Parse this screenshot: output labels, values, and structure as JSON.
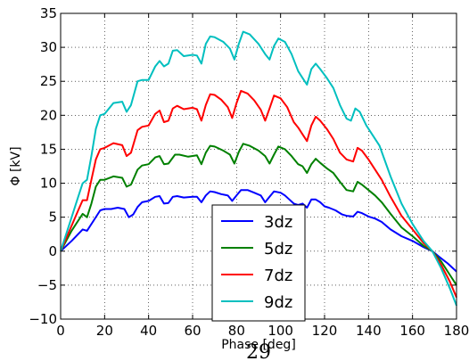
{
  "chart_data": {
    "type": "line",
    "xlabel": "Phase [deg]",
    "ylabel": "Φ [kV]",
    "xlim": [
      0,
      180
    ],
    "ylim": [
      -10,
      35
    ],
    "xticks": [
      0,
      20,
      40,
      60,
      80,
      100,
      120,
      140,
      160,
      180
    ],
    "yticks": [
      -10,
      -5,
      0,
      5,
      10,
      15,
      20,
      25,
      30,
      35
    ],
    "grid": true,
    "legend_position": "lower-center",
    "page_number": "29",
    "series": [
      {
        "name": "3dz",
        "color": "#0000ff",
        "points": [
          [
            0,
            0
          ],
          [
            5,
            1.5
          ],
          [
            10,
            3.2
          ],
          [
            12,
            3.0
          ],
          [
            15,
            4.5
          ],
          [
            18,
            6.0
          ],
          [
            20,
            6.2
          ],
          [
            23,
            6.2
          ],
          [
            26,
            6.4
          ],
          [
            29,
            6.2
          ],
          [
            31,
            5.0
          ],
          [
            33,
            5.4
          ],
          [
            35,
            6.5
          ],
          [
            37,
            7.2
          ],
          [
            40,
            7.4
          ],
          [
            43,
            8.0
          ],
          [
            45,
            8.1
          ],
          [
            47,
            7.0
          ],
          [
            49,
            7.1
          ],
          [
            51,
            8.0
          ],
          [
            53,
            8.1
          ],
          [
            56,
            7.9
          ],
          [
            60,
            8.0
          ],
          [
            62,
            8.0
          ],
          [
            64,
            7.2
          ],
          [
            66,
            8.2
          ],
          [
            68,
            8.8
          ],
          [
            70,
            8.7
          ],
          [
            73,
            8.4
          ],
          [
            76,
            8.2
          ],
          [
            78,
            7.4
          ],
          [
            80,
            8.2
          ],
          [
            82,
            9.0
          ],
          [
            85,
            9.0
          ],
          [
            88,
            8.6
          ],
          [
            91,
            8.2
          ],
          [
            93,
            7.2
          ],
          [
            95,
            8.0
          ],
          [
            97,
            8.8
          ],
          [
            100,
            8.6
          ],
          [
            102,
            8.2
          ],
          [
            104,
            7.6
          ],
          [
            106,
            7.0
          ],
          [
            108,
            6.8
          ],
          [
            110,
            7.0
          ],
          [
            112,
            6.4
          ],
          [
            114,
            7.6
          ],
          [
            116,
            7.6
          ],
          [
            118,
            7.2
          ],
          [
            120,
            6.6
          ],
          [
            122,
            6.4
          ],
          [
            125,
            6.0
          ],
          [
            128,
            5.4
          ],
          [
            130,
            5.2
          ],
          [
            133,
            5.1
          ],
          [
            135,
            5.8
          ],
          [
            137,
            5.6
          ],
          [
            140,
            5.1
          ],
          [
            143,
            4.8
          ],
          [
            146,
            4.3
          ],
          [
            150,
            3.2
          ],
          [
            155,
            2.2
          ],
          [
            160,
            1.5
          ],
          [
            165,
            0.6
          ],
          [
            169,
            0
          ],
          [
            172,
            -0.8
          ],
          [
            176,
            -1.8
          ],
          [
            180,
            -3.0
          ]
        ]
      },
      {
        "name": "5dz",
        "color": "#008000",
        "points": [
          [
            0,
            0
          ],
          [
            5,
            3.0
          ],
          [
            10,
            5.5
          ],
          [
            12,
            5.0
          ],
          [
            14,
            7.0
          ],
          [
            16,
            9.5
          ],
          [
            18,
            10.5
          ],
          [
            20,
            10.5
          ],
          [
            24,
            11.0
          ],
          [
            28,
            10.8
          ],
          [
            30,
            9.5
          ],
          [
            32,
            9.8
          ],
          [
            35,
            12.0
          ],
          [
            37,
            12.6
          ],
          [
            40,
            12.8
          ],
          [
            43,
            13.8
          ],
          [
            45,
            14.0
          ],
          [
            47,
            12.8
          ],
          [
            49,
            12.9
          ],
          [
            52,
            14.2
          ],
          [
            54,
            14.2
          ],
          [
            58,
            13.9
          ],
          [
            62,
            14.1
          ],
          [
            64,
            12.8
          ],
          [
            66,
            14.5
          ],
          [
            68,
            15.5
          ],
          [
            70,
            15.4
          ],
          [
            74,
            14.8
          ],
          [
            77,
            14.2
          ],
          [
            79,
            12.9
          ],
          [
            81,
            14.6
          ],
          [
            83,
            15.8
          ],
          [
            86,
            15.5
          ],
          [
            90,
            14.8
          ],
          [
            93,
            14.0
          ],
          [
            95,
            12.9
          ],
          [
            97,
            14.2
          ],
          [
            99,
            15.4
          ],
          [
            102,
            15.0
          ],
          [
            105,
            14.0
          ],
          [
            108,
            12.8
          ],
          [
            110,
            12.5
          ],
          [
            112,
            11.5
          ],
          [
            114,
            12.8
          ],
          [
            116,
            13.6
          ],
          [
            118,
            13.0
          ],
          [
            121,
            12.2
          ],
          [
            124,
            11.5
          ],
          [
            127,
            10.2
          ],
          [
            130,
            9.0
          ],
          [
            133,
            8.8
          ],
          [
            135,
            10.2
          ],
          [
            137,
            9.8
          ],
          [
            140,
            9.0
          ],
          [
            143,
            8.2
          ],
          [
            146,
            7.2
          ],
          [
            150,
            5.5
          ],
          [
            155,
            3.5
          ],
          [
            160,
            2.2
          ],
          [
            165,
            0.8
          ],
          [
            169,
            0
          ],
          [
            173,
            -1.5
          ],
          [
            177,
            -3.5
          ],
          [
            180,
            -5.0
          ]
        ]
      },
      {
        "name": "7dz",
        "color": "#ff0000",
        "points": [
          [
            0,
            0
          ],
          [
            4,
            3.0
          ],
          [
            8,
            6.0
          ],
          [
            10,
            7.5
          ],
          [
            12,
            7.5
          ],
          [
            14,
            10.5
          ],
          [
            16,
            13.5
          ],
          [
            18,
            15.0
          ],
          [
            20,
            15.2
          ],
          [
            24,
            15.9
          ],
          [
            28,
            15.6
          ],
          [
            30,
            14.0
          ],
          [
            32,
            14.5
          ],
          [
            35,
            17.8
          ],
          [
            37,
            18.3
          ],
          [
            40,
            18.5
          ],
          [
            43,
            20.2
          ],
          [
            45,
            20.7
          ],
          [
            47,
            19.0
          ],
          [
            49,
            19.2
          ],
          [
            51,
            21.0
          ],
          [
            53,
            21.4
          ],
          [
            56,
            20.9
          ],
          [
            60,
            21.1
          ],
          [
            62,
            20.9
          ],
          [
            64,
            19.2
          ],
          [
            66,
            21.5
          ],
          [
            68,
            23.1
          ],
          [
            70,
            23.0
          ],
          [
            73,
            22.3
          ],
          [
            76,
            21.2
          ],
          [
            78,
            19.6
          ],
          [
            80,
            21.8
          ],
          [
            82,
            23.6
          ],
          [
            85,
            23.2
          ],
          [
            88,
            22.2
          ],
          [
            91,
            20.8
          ],
          [
            93,
            19.2
          ],
          [
            95,
            21.0
          ],
          [
            97,
            22.9
          ],
          [
            100,
            22.5
          ],
          [
            103,
            21.2
          ],
          [
            106,
            19.0
          ],
          [
            108,
            18.2
          ],
          [
            110,
            17.2
          ],
          [
            112,
            16.2
          ],
          [
            114,
            18.5
          ],
          [
            116,
            19.8
          ],
          [
            118,
            19.2
          ],
          [
            121,
            18.0
          ],
          [
            124,
            16.5
          ],
          [
            127,
            14.5
          ],
          [
            130,
            13.5
          ],
          [
            133,
            13.2
          ],
          [
            135,
            15.2
          ],
          [
            137,
            14.8
          ],
          [
            140,
            13.5
          ],
          [
            143,
            12.0
          ],
          [
            146,
            10.5
          ],
          [
            150,
            8.0
          ],
          [
            155,
            5.2
          ],
          [
            160,
            3.2
          ],
          [
            165,
            1.2
          ],
          [
            169,
            0
          ],
          [
            173,
            -2.0
          ],
          [
            177,
            -4.5
          ],
          [
            180,
            -6.8
          ]
        ]
      },
      {
        "name": "9dz",
        "color": "#00bfbf",
        "points": [
          [
            0,
            0
          ],
          [
            4,
            4.0
          ],
          [
            8,
            8.0
          ],
          [
            10,
            10.0
          ],
          [
            12,
            10.5
          ],
          [
            14,
            14.0
          ],
          [
            16,
            18.0
          ],
          [
            18,
            20.0
          ],
          [
            20,
            20.2
          ],
          [
            24,
            21.8
          ],
          [
            28,
            22.0
          ],
          [
            30,
            20.5
          ],
          [
            32,
            21.5
          ],
          [
            35,
            25.0
          ],
          [
            37,
            25.2
          ],
          [
            40,
            25.2
          ],
          [
            43,
            27.2
          ],
          [
            45,
            28.0
          ],
          [
            47,
            27.2
          ],
          [
            49,
            27.6
          ],
          [
            51,
            29.5
          ],
          [
            53,
            29.6
          ],
          [
            56,
            28.7
          ],
          [
            60,
            28.9
          ],
          [
            62,
            28.8
          ],
          [
            64,
            27.6
          ],
          [
            66,
            30.5
          ],
          [
            68,
            31.6
          ],
          [
            70,
            31.5
          ],
          [
            74,
            30.8
          ],
          [
            77,
            29.8
          ],
          [
            79,
            28.2
          ],
          [
            81,
            30.5
          ],
          [
            83,
            32.3
          ],
          [
            86,
            31.9
          ],
          [
            90,
            30.5
          ],
          [
            93,
            29.0
          ],
          [
            95,
            28.2
          ],
          [
            97,
            30.2
          ],
          [
            99,
            31.3
          ],
          [
            102,
            30.8
          ],
          [
            105,
            29.0
          ],
          [
            108,
            26.5
          ],
          [
            110,
            25.5
          ],
          [
            112,
            24.5
          ],
          [
            114,
            26.8
          ],
          [
            116,
            27.6
          ],
          [
            118,
            26.8
          ],
          [
            121,
            25.5
          ],
          [
            124,
            24.0
          ],
          [
            127,
            21.5
          ],
          [
            130,
            19.5
          ],
          [
            132,
            19.2
          ],
          [
            134,
            21.0
          ],
          [
            136,
            20.5
          ],
          [
            139,
            18.5
          ],
          [
            142,
            17.0
          ],
          [
            145,
            15.5
          ],
          [
            150,
            11.0
          ],
          [
            155,
            7.0
          ],
          [
            160,
            4.0
          ],
          [
            165,
            1.5
          ],
          [
            169,
            0
          ],
          [
            173,
            -2.5
          ],
          [
            177,
            -5.5
          ],
          [
            180,
            -8.0
          ]
        ]
      }
    ]
  }
}
